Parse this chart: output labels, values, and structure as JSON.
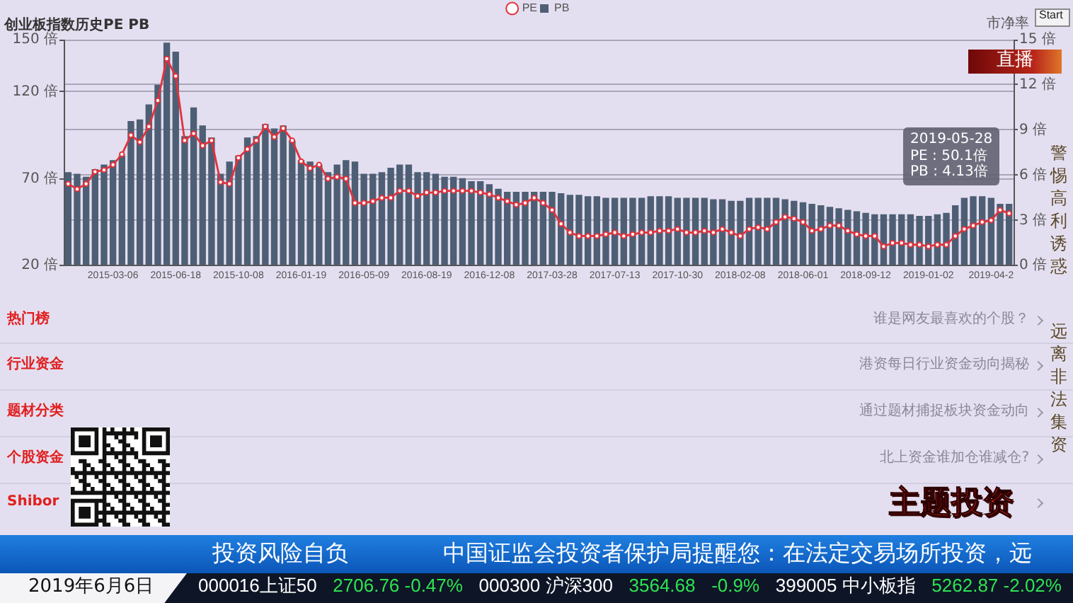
{
  "chart_data": [
    {
      "type": "bar",
      "title": "创业板指数历史PE PB",
      "y2label": "市净率",
      "categories": [
        null,
        null,
        null,
        null,
        null,
        "2015-03-06",
        null,
        null,
        null,
        null,
        null,
        null,
        "2015-06-18",
        null,
        null,
        null,
        null,
        null,
        null,
        "2015-10-08",
        null,
        null,
        null,
        null,
        null,
        null,
        "2016-01-19",
        null,
        null,
        null,
        null,
        null,
        null,
        "2016-05-09",
        null,
        null,
        null,
        null,
        null,
        null,
        "2016-08-19",
        null,
        null,
        null,
        null,
        null,
        null,
        "2016-12-08",
        null,
        null,
        null,
        null,
        null,
        null,
        "2017-03-28",
        null,
        null,
        null,
        null,
        null,
        null,
        "2017-07-13",
        null,
        null,
        null,
        null,
        null,
        null,
        "2017-10-30",
        null,
        null,
        null,
        null,
        null,
        null,
        "2018-02-08",
        null,
        null,
        null,
        null,
        null,
        null,
        "2018-06-01",
        null,
        null,
        null,
        null,
        null,
        null,
        "2018-09-12",
        null,
        null,
        null,
        null,
        null,
        null,
        "2019-01-02",
        null,
        null,
        null,
        null,
        null,
        null,
        "2019-04-2",
        null,
        null
      ],
      "series": [
        {
          "name": "PE",
          "type": "line",
          "color": "#e2323c",
          "values": [
            67,
            64,
            67,
            74,
            75,
            78,
            84,
            95,
            91,
            100,
            115,
            139,
            129,
            92,
            96,
            89,
            92,
            68,
            67,
            82,
            87,
            92,
            100,
            94,
            99,
            92,
            80,
            76,
            78,
            70,
            71,
            70,
            56,
            56,
            57,
            59,
            59,
            63,
            63,
            60,
            62,
            62,
            63,
            63,
            63,
            63,
            62,
            61,
            59,
            57,
            55,
            56,
            59,
            56,
            52,
            44,
            39,
            37,
            37,
            37,
            38,
            39,
            37,
            38,
            39,
            39,
            40,
            40,
            41,
            39,
            39,
            40,
            39,
            41,
            39,
            37,
            41,
            42,
            41,
            45,
            48,
            47,
            45,
            40,
            41,
            43,
            43,
            40,
            38,
            37,
            37,
            31,
            33,
            33,
            32,
            32,
            31,
            32,
            32,
            37,
            41,
            43,
            45,
            46,
            52,
            50
          ]
        },
        {
          "name": "PB",
          "type": "bar",
          "axis": "y2",
          "color": "#4e5f75",
          "values": [
            6.2,
            6.1,
            5.9,
            6.4,
            6.7,
            7.0,
            7.3,
            9.6,
            9.7,
            10.7,
            12.0,
            14.8,
            14.2,
            8.6,
            10.5,
            9.3,
            8.5,
            6.1,
            6.9,
            7.3,
            8.5,
            8.6,
            9.4,
            9.1,
            9.3,
            8.3,
            7.0,
            6.9,
            6.7,
            6.2,
            6.7,
            7.0,
            6.9,
            6.1,
            6.1,
            6.2,
            6.5,
            6.7,
            6.7,
            6.2,
            6.2,
            6.1,
            5.9,
            5.9,
            5.8,
            5.6,
            5.6,
            5.4,
            5.1,
            4.9,
            4.9,
            4.9,
            4.9,
            4.9,
            4.9,
            4.8,
            4.7,
            4.7,
            4.6,
            4.6,
            4.5,
            4.5,
            4.5,
            4.5,
            4.5,
            4.6,
            4.6,
            4.6,
            4.5,
            4.5,
            4.5,
            4.5,
            4.4,
            4.4,
            4.3,
            4.3,
            4.5,
            4.5,
            4.5,
            4.5,
            4.4,
            4.3,
            4.2,
            4.1,
            4.0,
            3.9,
            3.8,
            3.7,
            3.6,
            3.5,
            3.4,
            3.4,
            3.4,
            3.4,
            3.4,
            3.3,
            3.3,
            3.4,
            3.5,
            4.0,
            4.5,
            4.6,
            4.6,
            4.5,
            4.1,
            4.1
          ]
        }
      ],
      "ylim": [
        20,
        150
      ],
      "yticks": [
        {
          "value": 20,
          "label": "20 倍"
        },
        {
          "value": 70,
          "label": "70 倍"
        },
        {
          "value": 120,
          "label": "120 倍"
        },
        {
          "value": 150,
          "label": "150 倍"
        }
      ],
      "y2lim": [
        0,
        15
      ],
      "y2ticks": [
        {
          "value": 0,
          "label": "0 倍"
        },
        {
          "value": 3,
          "label": "3 倍"
        },
        {
          "value": 6,
          "label": "6 倍"
        },
        {
          "value": 9,
          "label": "9 倍"
        },
        {
          "value": 12,
          "label": "12 倍"
        },
        {
          "value": 15,
          "label": "15 倍"
        }
      ],
      "grid": "y",
      "legend": "top",
      "marker": "circle",
      "line_style": "solid",
      "annotations": [
        "2019-05-28\nPE : 50.1倍\nPB : 4.13倍"
      ]
    },
    {
      "type": "other",
      "annotations": [
        "热门榜",
        "谁是网友最喜欢的个股？",
        "行业资金",
        "港资每日行业资金动向揭秘",
        "题材分类",
        "通过题材捕捉板块资金动向",
        "个股资金",
        "北上资金谁加仓谁减仓?",
        "Shibor",
        "直播",
        "警惕高利诱惑",
        "远离非法集资",
        "主题投资",
        "Start",
        "投资风险自负",
        "中国证监会投资者保护局提醒您：在法定交易场所投资，远",
        "2019年6月6日",
        "000016上证50",
        "2706.76 -0.47%",
        "000300 沪深300",
        "3564.68",
        "-0.9%",
        "399005 中小板指",
        "5262.87 -2.02%"
      ]
    }
  ]
}
